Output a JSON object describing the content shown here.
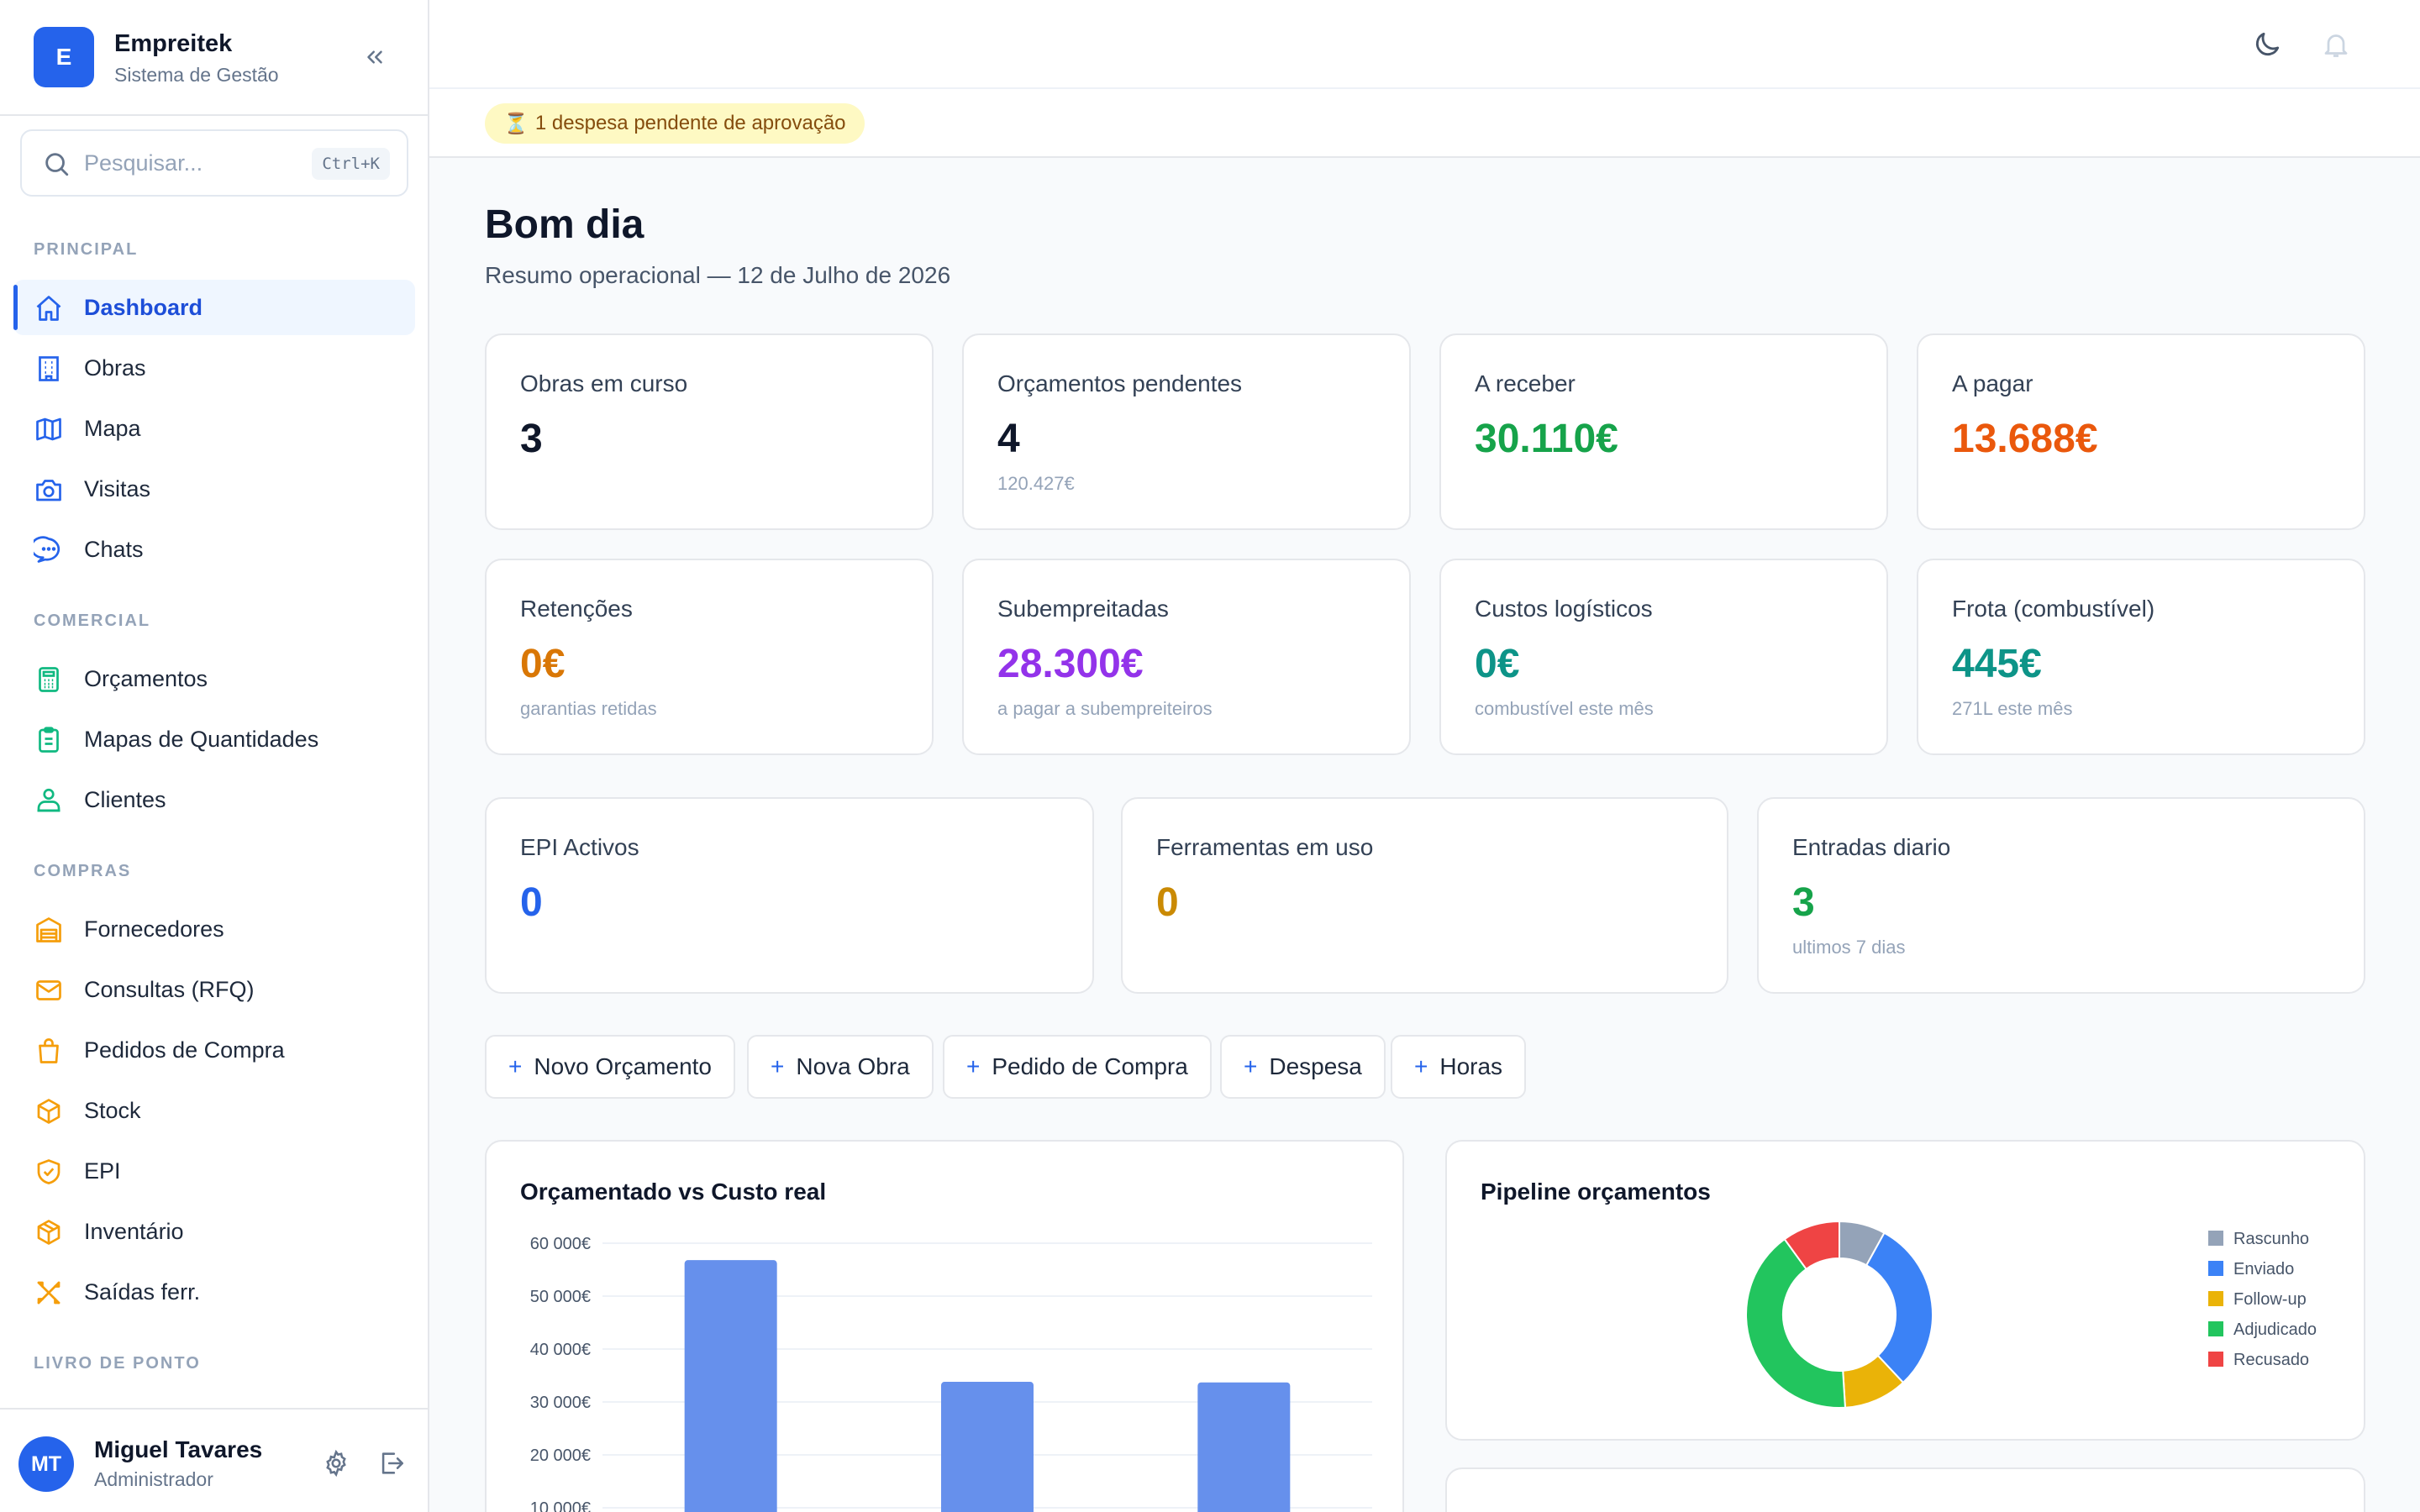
{
  "brand": {
    "initial": "E",
    "name": "Empreitek",
    "subtitle": "Sistema de Gestão"
  },
  "search": {
    "placeholder": "Pesquisar...",
    "shortcut": "Ctrl+K"
  },
  "sidebar": {
    "sections": [
      {
        "title": "PRINCIPAL",
        "items": [
          {
            "label": "Dashboard",
            "icon": "home-icon",
            "active": true
          },
          {
            "label": "Obras",
            "icon": "building-icon"
          },
          {
            "label": "Mapa",
            "icon": "map-icon"
          },
          {
            "label": "Visitas",
            "icon": "camera-icon"
          },
          {
            "label": "Chats",
            "icon": "chat-icon"
          }
        ]
      },
      {
        "title": "COMERCIAL",
        "items": [
          {
            "label": "Orçamentos",
            "icon": "calculator-icon"
          },
          {
            "label": "Mapas de Quantidades",
            "icon": "clipboard-icon"
          },
          {
            "label": "Clientes",
            "icon": "users-icon"
          }
        ]
      },
      {
        "title": "COMPRAS",
        "items": [
          {
            "label": "Fornecedores",
            "icon": "warehouse-icon"
          },
          {
            "label": "Consultas (RFQ)",
            "icon": "mail-icon"
          },
          {
            "label": "Pedidos de Compra",
            "icon": "shopping-bag-icon"
          },
          {
            "label": "Stock",
            "icon": "box-icon"
          },
          {
            "label": "EPI",
            "icon": "shield-icon"
          },
          {
            "label": "Inventário",
            "icon": "package-icon"
          },
          {
            "label": "Saídas ferr.",
            "icon": "tools-icon"
          }
        ]
      },
      {
        "title": "LIVRO DE PONTO",
        "items": []
      }
    ]
  },
  "user": {
    "initials": "MT",
    "name": "Miguel Tavares",
    "role": "Administrador"
  },
  "alert": {
    "icon": "⏳",
    "text": "1 despesa pendente de aprovação"
  },
  "header": {
    "greeting": "Bom dia",
    "subtitle": "Resumo operacional — 12 de Julho de 2026"
  },
  "kpis_row1": [
    {
      "title": "Obras em curso",
      "value": "3",
      "sub": "",
      "color": "#0f172a"
    },
    {
      "title": "Orçamentos pendentes",
      "value": "4",
      "sub": "120.427€",
      "color": "#0f172a"
    },
    {
      "title": "A receber",
      "value": "30.110€",
      "sub": "",
      "color": "#16a34a"
    },
    {
      "title": "A pagar",
      "value": "13.688€",
      "sub": "",
      "color": "#ea580c"
    }
  ],
  "kpis_row2": [
    {
      "title": "Retenções",
      "value": "0€",
      "sub": "garantias retidas",
      "color": "#d97706"
    },
    {
      "title": "Subempreitadas",
      "value": "28.300€",
      "sub": "a pagar a subempreiteiros",
      "color": "#9333ea"
    },
    {
      "title": "Custos logísticos",
      "value": "0€",
      "sub": "combustível este mês",
      "color": "#0d9488"
    },
    {
      "title": "Frota (combustível)",
      "value": "445€",
      "sub": "271L este mês",
      "color": "#0d9488"
    }
  ],
  "kpis_row3": [
    {
      "title": "EPI Activos",
      "value": "0",
      "sub": "",
      "color": "#2563eb"
    },
    {
      "title": "Ferramentas em uso",
      "value": "0",
      "sub": "",
      "color": "#ca8a04"
    },
    {
      "title": "Entradas diario",
      "value": "3",
      "sub": "ultimos 7 dias",
      "color": "#16a34a"
    }
  ],
  "actions": [
    {
      "label": "Novo Orçamento"
    },
    {
      "label": "Nova Obra"
    },
    {
      "label": "Pedido de Compra"
    },
    {
      "label": "Despesa"
    },
    {
      "label": "Horas"
    }
  ],
  "chart_data": [
    {
      "type": "bar",
      "title": "Orçamentado vs Custo real",
      "categories": [
        "",
        "",
        ""
      ],
      "series": [
        {
          "values": [
            56800,
            33800,
            33700
          ],
          "color": "#6690ec"
        }
      ],
      "y_ticks": [
        "60 000€",
        "50 000€",
        "40 000€",
        "30 000€",
        "20 000€",
        "10 000€"
      ],
      "y_tick_values": [
        60000,
        50000,
        40000,
        30000,
        20000,
        10000
      ],
      "ylim": [
        0,
        60000
      ],
      "grid": true
    },
    {
      "type": "pie",
      "title": "Pipeline orçamentos",
      "donut": true,
      "legend_position": "right",
      "slices": [
        {
          "name": "Rascunho",
          "value": 8,
          "color": "#94a3b8"
        },
        {
          "name": "Enviado",
          "value": 30,
          "color": "#3b82f6"
        },
        {
          "name": "Follow-up",
          "value": 11,
          "color": "#eab308"
        },
        {
          "name": "Adjudicado",
          "value": 41,
          "color": "#22c55e"
        },
        {
          "name": "Recusado",
          "value": 10,
          "color": "#ef4444"
        }
      ]
    }
  ]
}
